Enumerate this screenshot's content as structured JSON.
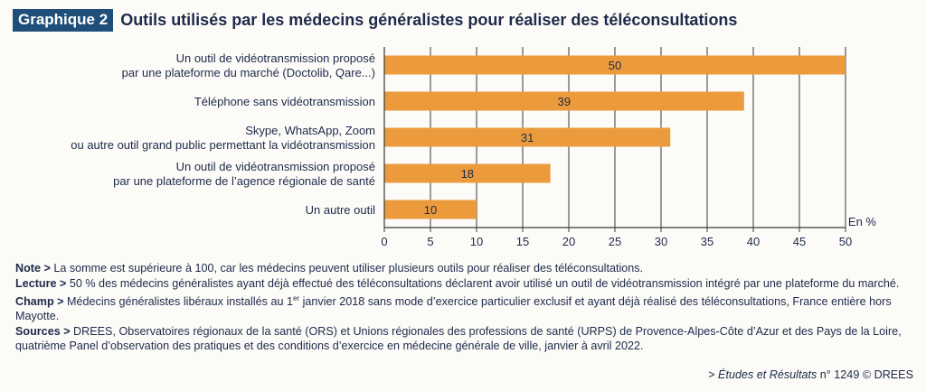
{
  "header": {
    "badge": "Graphique 2",
    "title": "Outils utilisés par les médecins généralistes pour réaliser des téléconsultations"
  },
  "chart_data": {
    "type": "bar",
    "orientation": "horizontal",
    "categories": [
      [
        "Un outil de vidéotransmission proposé",
        "par une plateforme du marché (Doctolib, Qare...)"
      ],
      [
        "Téléphone sans vidéotransmission"
      ],
      [
        "Skype, WhatsApp, Zoom",
        "ou autre outil grand public permettant la vidéotransmission"
      ],
      [
        "Un outil de vidéotransmission proposé",
        "par une plateforme de l’agence régionale de santé"
      ],
      [
        "Un autre outil"
      ]
    ],
    "values": [
      50,
      39,
      31,
      18,
      10
    ],
    "xlim": [
      0,
      50
    ],
    "xticks": [
      0,
      5,
      10,
      15,
      20,
      25,
      30,
      35,
      40,
      45,
      50
    ],
    "unit_label": "En %",
    "grid": true,
    "bar_color": "#eb9b3c"
  },
  "notes": {
    "note_label": "Note >",
    "note_text": " La somme est supérieure à 100, car les médecins peuvent utiliser plusieurs outils pour réaliser des téléconsultations.",
    "lecture_label": "Lecture >",
    "lecture_text": " 50 % des médecins généralistes ayant déjà effectué des téléconsultations déclarent avoir utilisé un outil de vidéotransmission intégré par une plateforme du marché.",
    "champ_label": "Champ >",
    "champ_text_a": " Médecins généralistes libéraux installés au 1",
    "champ_sup": "er",
    "champ_text_b": " janvier 2018 sans mode d’exercice particulier exclusif et ayant déjà réalisé des téléconsultations, France entière hors Mayotte.",
    "sources_label": "Sources >",
    "sources_text": " DREES, Observatoires régionaux de la santé (ORS) et Unions régionales des professions de santé (URPS) de Provence-Alpes-Côte d’Azur et des Pays de la Loire, quatrième Panel d’observation des pratiques et des conditions d’exercice en médecine générale de ville, janvier à avril 2022."
  },
  "source": {
    "prefix": "> ",
    "publication": "Études et Résultats",
    "suffix": " n° 1249 © DREES"
  }
}
